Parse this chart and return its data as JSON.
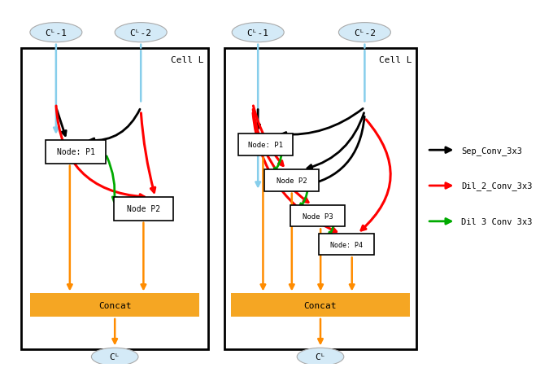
{
  "fig_width": 6.4,
  "fig_height": 4.38,
  "bg_color": "#ffffff",
  "concat_color": "#f5a623",
  "ellipse_color": "#d4eaf7",
  "ellipse_edge": "#aaaaaa",
  "arrow_black": "#000000",
  "arrow_red": "#ff0000",
  "arrow_green": "#00aa00",
  "arrow_orange": "#ff8c00",
  "arrow_blue": "#87ceeb",
  "legend_texts": [
    "Sep_Conv_3x3",
    "Dil_2_Conv_3x3",
    "Dil 3 Conv 3x3"
  ],
  "cell_label": "Cell L",
  "node_labels_left": [
    "Node: P1",
    "Node P2"
  ],
  "node_labels_right": [
    "Node: P1",
    "Node P2",
    "Node P3",
    "Node: P4"
  ],
  "concat_label": "Concat",
  "input_label_1": "Cᴸ-1",
  "input_label_2": "Cᴸ-2",
  "output_label": "Cᴸ"
}
